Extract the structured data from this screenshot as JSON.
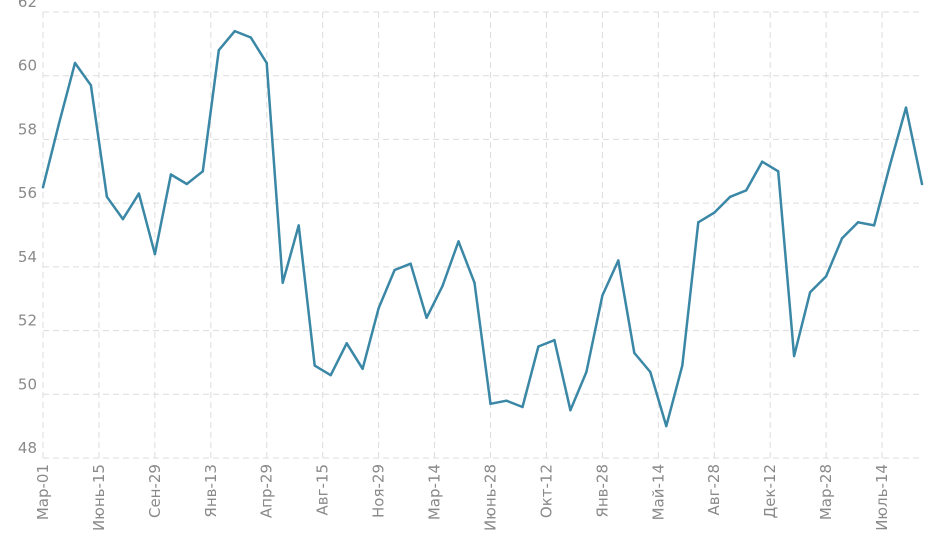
{
  "chart_data": {
    "type": "line",
    "title": "",
    "xlabel": "",
    "ylabel": "",
    "ylim": [
      48,
      62
    ],
    "yticks": [
      48,
      50,
      52,
      54,
      56,
      58,
      60,
      62
    ],
    "grid": true,
    "legend": "none",
    "x_ticks": [
      {
        "index": 0,
        "label": "Мар-01"
      },
      {
        "index": 3.5,
        "label": "Июнь-15"
      },
      {
        "index": 7,
        "label": "Сен-29"
      },
      {
        "index": 10.5,
        "label": "Янв-13"
      },
      {
        "index": 14,
        "label": "Апр-29"
      },
      {
        "index": 17.5,
        "label": "Авг-15"
      },
      {
        "index": 21,
        "label": "Ноя-29"
      },
      {
        "index": 24.5,
        "label": "Мар-14"
      },
      {
        "index": 28,
        "label": "Июнь-28"
      },
      {
        "index": 31.5,
        "label": "Окт-12"
      },
      {
        "index": 35,
        "label": "Янв-28"
      },
      {
        "index": 38.5,
        "label": "Май-14"
      },
      {
        "index": 42,
        "label": "Авг-28"
      },
      {
        "index": 45.5,
        "label": "Дек-12"
      },
      {
        "index": 49,
        "label": "Мар-28"
      },
      {
        "index": 52.5,
        "label": "Июль-14"
      }
    ],
    "n_points": 56,
    "series": [
      {
        "color": "#3a87a6",
        "values": [
          56.5,
          58.5,
          60.4,
          59.7,
          56.2,
          55.5,
          56.3,
          54.4,
          56.9,
          56.6,
          57.0,
          60.8,
          61.4,
          61.2,
          60.4,
          53.5,
          55.3,
          50.9,
          50.6,
          51.6,
          50.8,
          52.7,
          53.9,
          54.1,
          52.4,
          53.4,
          54.8,
          53.5,
          49.7,
          49.8,
          49.6,
          51.5,
          51.7,
          49.5,
          50.7,
          53.1,
          54.2,
          51.3,
          50.7,
          49.0,
          50.9,
          55.4,
          55.7,
          56.2,
          56.4,
          57.3,
          57.0,
          51.2,
          53.2,
          53.7,
          54.9,
          55.4,
          55.3,
          57.2,
          59.0,
          56.6
        ]
      }
    ]
  }
}
